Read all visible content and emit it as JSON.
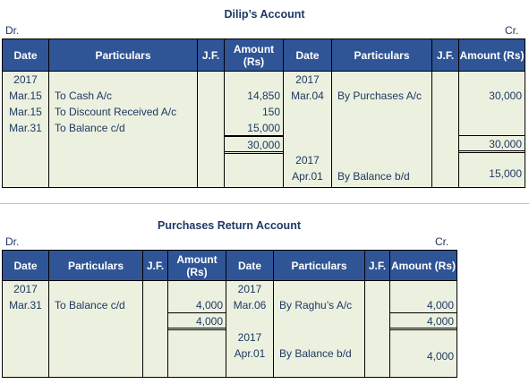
{
  "dilip": {
    "title": "Dilip’s Account",
    "dr": "Dr.",
    "cr": "Cr.",
    "headers": {
      "date": "Date",
      "particulars": "Particulars",
      "jf": "J.F.",
      "amount": "Amount (Rs)"
    },
    "debit": {
      "year": "2017",
      "rows": [
        {
          "date": "Mar.15",
          "particulars": "To Cash A/c",
          "amount": "14,850"
        },
        {
          "date": "Mar.15",
          "particulars": "To Discount Received A/c",
          "amount": "150"
        },
        {
          "date": "Mar.31",
          "particulars": "To Balance c/d",
          "amount": "15,000"
        }
      ],
      "total": "30,000"
    },
    "credit": {
      "year": "2017",
      "rows": [
        {
          "date": "Mar.04",
          "particulars": "By Purchases A/c",
          "amount": "30,000"
        }
      ],
      "total": "30,000",
      "year2": "2017",
      "balance": {
        "date": "Apr.01",
        "particulars": "By Balance b/d",
        "amount": "15,000"
      }
    }
  },
  "purchases_return": {
    "title": "Purchases Return Account",
    "dr": "Dr.",
    "cr": "Cr.",
    "headers": {
      "date": "Date",
      "particulars": "Particulars",
      "jf": "J.F.",
      "amount": "Amount (Rs)"
    },
    "debit": {
      "year": "2017",
      "rows": [
        {
          "date": "Mar.31",
          "particulars": "To Balance c/d",
          "amount": "4,000"
        }
      ],
      "total": "4,000"
    },
    "credit": {
      "year": "2017",
      "rows": [
        {
          "date": "Mar.06",
          "particulars": "By Raghu’s A/c",
          "amount": "4,000"
        }
      ],
      "total": "4,000",
      "year2": "2017",
      "balance": {
        "date": "Apr.01",
        "particulars": "By Balance b/d",
        "amount": "4,000"
      }
    }
  }
}
